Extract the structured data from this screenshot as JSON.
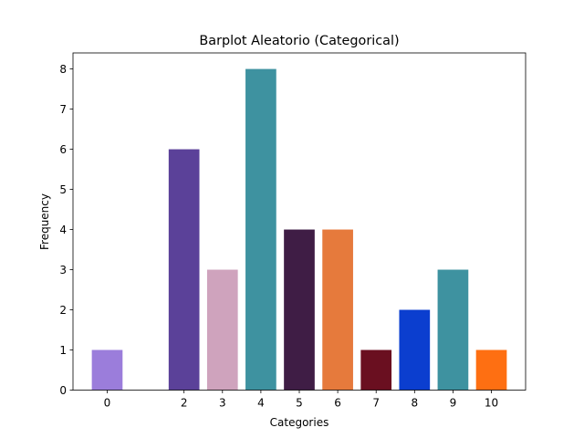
{
  "chart_data": {
    "type": "bar",
    "title": "Barplot Aleatorio (Categorical)",
    "xlabel": "Categories",
    "ylabel": "Frequency",
    "categories": [
      "0",
      "2",
      "3",
      "4",
      "5",
      "6",
      "7",
      "8",
      "9",
      "10"
    ],
    "x": [
      0,
      2,
      3,
      4,
      5,
      6,
      7,
      8,
      9,
      10
    ],
    "values": [
      1,
      6,
      3,
      8,
      4,
      4,
      1,
      2,
      3,
      1
    ],
    "bar_colors": [
      "#9b7ddb",
      "#5b4199",
      "#cfa3bd",
      "#3e92a0",
      "#3f1d45",
      "#e67a3c",
      "#6a0f20",
      "#0b3ecf",
      "#3e92a0",
      "#fe6f12"
    ],
    "ylim": [
      0,
      8.4
    ],
    "y_ticks": [
      0,
      1,
      2,
      3,
      4,
      5,
      6,
      7,
      8
    ],
    "grid": false,
    "legend": "none"
  }
}
